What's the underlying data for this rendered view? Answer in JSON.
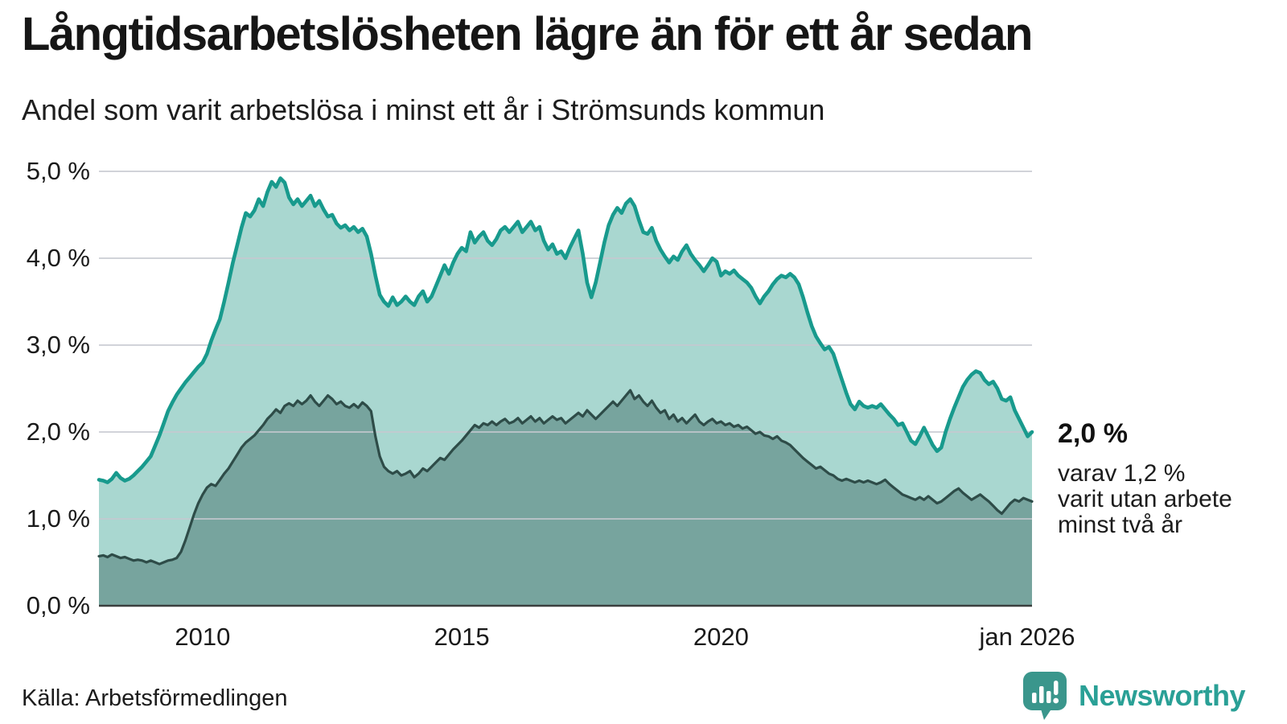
{
  "header": {
    "title": "Långtidsarbetslösheten lägre än för ett år sedan",
    "subtitle": "Andel som varit arbetslösa i minst ett år i Strömsunds kommun"
  },
  "annotation": {
    "value_label": "2,0 %",
    "detail_lines": [
      "varav 1,2 %",
      "varit utan arbete",
      "minst två år"
    ]
  },
  "footer": {
    "source": "Källa: Arbetsförmedlingen"
  },
  "branding": {
    "name": "Newsworthy",
    "icon": "bar-chart-speech-bubble-icon"
  },
  "chart_data": {
    "type": "area",
    "title": "Långtidsarbetslösheten lägre än för ett år sedan",
    "subtitle": "Andel som varit arbetslösa i minst ett år i Strömsunds kommun",
    "x_start_year": 2008.0,
    "x_end_year": 2026.0,
    "x_step_months": 1,
    "ylim": [
      0,
      5
    ],
    "grid": true,
    "legend_position": "right-annotation",
    "y_ticks": [
      {
        "label": "5,0 %",
        "value": 5
      },
      {
        "label": "4,0 %",
        "value": 4
      },
      {
        "label": "3,0 %",
        "value": 3
      },
      {
        "label": "2,0 %",
        "value": 2
      },
      {
        "label": "1,0 %",
        "value": 1
      },
      {
        "label": "0,0 %",
        "value": 0
      }
    ],
    "x_ticks": [
      {
        "label": "2010",
        "year": 2010
      },
      {
        "label": "2015",
        "year": 2015
      },
      {
        "label": "2020",
        "year": 2020
      },
      {
        "label": "jan 2026",
        "year": 2026
      }
    ],
    "colors": {
      "line_1yr": "#189a8d",
      "fill_1yr": "#a9d7d0",
      "line_2yr": "#2e4c48",
      "fill_2yr": "#77a49e",
      "gridline": "rgba(197,200,208,0.8)",
      "axis": "#3b3f3e",
      "brand_teal": "#3a968c",
      "brand_text": "#2aa096"
    },
    "series": [
      {
        "name": "Arbetslösa minst ett år",
        "end_label": "2,0 %",
        "values": [
          1.45,
          1.44,
          1.42,
          1.46,
          1.53,
          1.47,
          1.44,
          1.46,
          1.5,
          1.55,
          1.6,
          1.66,
          1.72,
          1.84,
          1.96,
          2.1,
          2.24,
          2.34,
          2.43,
          2.5,
          2.57,
          2.63,
          2.69,
          2.75,
          2.8,
          2.9,
          3.05,
          3.18,
          3.3,
          3.5,
          3.72,
          3.95,
          4.15,
          4.35,
          4.52,
          4.48,
          4.55,
          4.68,
          4.6,
          4.76,
          4.88,
          4.82,
          4.92,
          4.87,
          4.7,
          4.62,
          4.68,
          4.6,
          4.66,
          4.72,
          4.6,
          4.66,
          4.56,
          4.48,
          4.5,
          4.4,
          4.35,
          4.38,
          4.32,
          4.36,
          4.3,
          4.34,
          4.25,
          4.05,
          3.8,
          3.58,
          3.5,
          3.45,
          3.55,
          3.46,
          3.5,
          3.56,
          3.5,
          3.46,
          3.56,
          3.62,
          3.5,
          3.56,
          3.68,
          3.8,
          3.92,
          3.82,
          3.95,
          4.05,
          4.12,
          4.08,
          4.3,
          4.18,
          4.25,
          4.3,
          4.2,
          4.15,
          4.22,
          4.32,
          4.36,
          4.3,
          4.36,
          4.42,
          4.3,
          4.36,
          4.42,
          4.32,
          4.36,
          4.2,
          4.1,
          4.16,
          4.05,
          4.08,
          4.0,
          4.12,
          4.22,
          4.32,
          4.05,
          3.72,
          3.55,
          3.72,
          3.95,
          4.18,
          4.38,
          4.5,
          4.58,
          4.52,
          4.63,
          4.68,
          4.6,
          4.44,
          4.3,
          4.28,
          4.35,
          4.2,
          4.1,
          4.02,
          3.95,
          4.02,
          3.98,
          4.08,
          4.15,
          4.05,
          3.98,
          3.92,
          3.85,
          3.92,
          4.0,
          3.96,
          3.8,
          3.85,
          3.82,
          3.86,
          3.8,
          3.76,
          3.72,
          3.66,
          3.56,
          3.48,
          3.56,
          3.62,
          3.7,
          3.76,
          3.8,
          3.78,
          3.82,
          3.78,
          3.7,
          3.55,
          3.38,
          3.22,
          3.1,
          3.02,
          2.95,
          2.98,
          2.9,
          2.75,
          2.6,
          2.45,
          2.32,
          2.26,
          2.35,
          2.3,
          2.28,
          2.3,
          2.28,
          2.32,
          2.26,
          2.2,
          2.15,
          2.08,
          2.1,
          2.0,
          1.9,
          1.86,
          1.95,
          2.05,
          1.95,
          1.85,
          1.78,
          1.82,
          2.0,
          2.15,
          2.28,
          2.4,
          2.52,
          2.6,
          2.66,
          2.7,
          2.68,
          2.6,
          2.55,
          2.58,
          2.5,
          2.38,
          2.36,
          2.4,
          2.25,
          2.15,
          2.05,
          1.95,
          2.0
        ]
      },
      {
        "name": "Varav utan arbete minst två år",
        "end_label": "1,2 %",
        "values": [
          0.57,
          0.58,
          0.56,
          0.59,
          0.57,
          0.55,
          0.56,
          0.54,
          0.52,
          0.53,
          0.52,
          0.5,
          0.52,
          0.5,
          0.48,
          0.5,
          0.52,
          0.53,
          0.55,
          0.62,
          0.75,
          0.9,
          1.05,
          1.18,
          1.28,
          1.36,
          1.4,
          1.38,
          1.45,
          1.52,
          1.58,
          1.66,
          1.74,
          1.82,
          1.88,
          1.92,
          1.96,
          2.02,
          2.08,
          2.15,
          2.2,
          2.26,
          2.22,
          2.3,
          2.33,
          2.3,
          2.36,
          2.32,
          2.36,
          2.42,
          2.35,
          2.3,
          2.36,
          2.42,
          2.38,
          2.32,
          2.35,
          2.3,
          2.28,
          2.32,
          2.28,
          2.34,
          2.3,
          2.24,
          1.95,
          1.72,
          1.6,
          1.55,
          1.52,
          1.55,
          1.5,
          1.52,
          1.55,
          1.48,
          1.52,
          1.58,
          1.55,
          1.6,
          1.65,
          1.7,
          1.68,
          1.74,
          1.8,
          1.85,
          1.9,
          1.96,
          2.02,
          2.08,
          2.05,
          2.1,
          2.08,
          2.12,
          2.08,
          2.12,
          2.15,
          2.1,
          2.12,
          2.16,
          2.1,
          2.14,
          2.18,
          2.12,
          2.16,
          2.1,
          2.14,
          2.18,
          2.14,
          2.16,
          2.1,
          2.14,
          2.18,
          2.22,
          2.18,
          2.25,
          2.2,
          2.15,
          2.2,
          2.25,
          2.3,
          2.35,
          2.3,
          2.36,
          2.42,
          2.48,
          2.38,
          2.42,
          2.35,
          2.3,
          2.36,
          2.28,
          2.22,
          2.25,
          2.15,
          2.2,
          2.12,
          2.16,
          2.1,
          2.15,
          2.2,
          2.12,
          2.08,
          2.12,
          2.15,
          2.1,
          2.12,
          2.08,
          2.1,
          2.06,
          2.08,
          2.04,
          2.06,
          2.02,
          1.98,
          2.0,
          1.96,
          1.95,
          1.92,
          1.95,
          1.9,
          1.88,
          1.85,
          1.8,
          1.75,
          1.7,
          1.66,
          1.62,
          1.58,
          1.6,
          1.56,
          1.52,
          1.5,
          1.46,
          1.44,
          1.46,
          1.44,
          1.42,
          1.44,
          1.42,
          1.44,
          1.42,
          1.4,
          1.42,
          1.45,
          1.4,
          1.36,
          1.32,
          1.28,
          1.26,
          1.24,
          1.22,
          1.25,
          1.22,
          1.26,
          1.22,
          1.18,
          1.2,
          1.24,
          1.28,
          1.32,
          1.35,
          1.3,
          1.26,
          1.22,
          1.25,
          1.28,
          1.24,
          1.2,
          1.15,
          1.1,
          1.06,
          1.12,
          1.18,
          1.22,
          1.2,
          1.24,
          1.22,
          1.2
        ]
      }
    ]
  }
}
